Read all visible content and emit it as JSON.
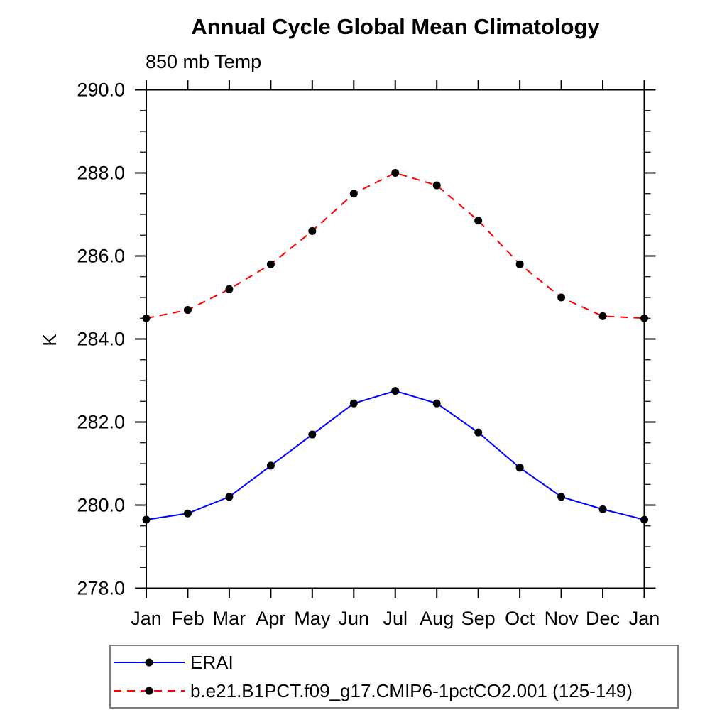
{
  "page": {
    "background": "#ffffff",
    "text_color": "#000000",
    "axis_color": "#000000"
  },
  "chart_data": {
    "type": "line",
    "title": "Annual Cycle Global Mean Climatology",
    "subtitle": "850 mb Temp",
    "ylabel": "K",
    "xlabel": "",
    "grid": false,
    "legend_position": "bottom-left-box",
    "x_categories": [
      "Jan",
      "Feb",
      "Mar",
      "Apr",
      "May",
      "Jun",
      "Jul",
      "Aug",
      "Sep",
      "Oct",
      "Nov",
      "Dec",
      "Jan"
    ],
    "ylim": [
      278.0,
      290.0
    ],
    "y_major_tick_step": 2.0,
    "y_minor_tick_step": 0.5,
    "y_tick_labels": [
      "278.0",
      "280.0",
      "282.0",
      "284.0",
      "286.0",
      "288.0",
      "290.0"
    ],
    "series": [
      {
        "name": "ERAI",
        "color": "#0000ff",
        "line_style": "solid",
        "marker": "filled-circle",
        "marker_color": "#000000",
        "values": [
          279.65,
          279.8,
          280.2,
          280.95,
          281.7,
          282.45,
          282.75,
          282.45,
          281.75,
          280.9,
          280.2,
          279.9,
          279.65
        ]
      },
      {
        "name": "b.e21.B1PCT.f09_g17.CMIP6-1pctCO2.001 (125-149)",
        "color": "#ff0000",
        "line_style": "dashed",
        "marker": "filled-circle",
        "marker_color": "#000000",
        "values": [
          284.5,
          284.7,
          285.2,
          285.8,
          286.6,
          287.5,
          288.0,
          287.7,
          286.85,
          285.8,
          285.0,
          284.55,
          284.5
        ]
      }
    ]
  }
}
